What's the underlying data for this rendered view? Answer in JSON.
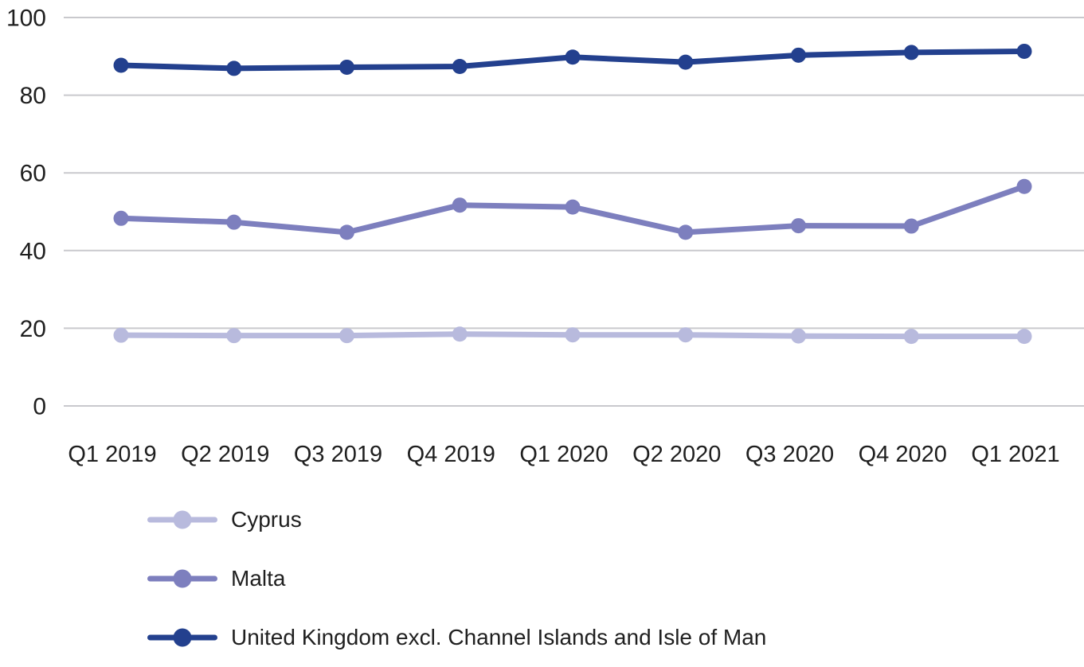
{
  "chart_data": {
    "type": "line",
    "title": "",
    "xlabel": "",
    "ylabel": "",
    "x": [
      "Q1 2019",
      "Q2 2019",
      "Q3 2019",
      "Q4 2019",
      "Q1 2020",
      "Q2 2020",
      "Q3 2020",
      "Q4 2020",
      "Q1 2021"
    ],
    "series": [
      {
        "name": "Cyprus",
        "color": "#b8badd",
        "values": [
          18.2,
          18.1,
          18.1,
          18.5,
          18.3,
          18.3,
          18.0,
          17.9,
          17.9
        ]
      },
      {
        "name": "Malta",
        "color": "#7d7fbe",
        "values": [
          48.3,
          47.3,
          44.7,
          51.7,
          51.2,
          44.7,
          46.4,
          46.3,
          56.5
        ]
      },
      {
        "name": "United Kingdom excl. Channel Islands and Isle of Man",
        "color": "#23408e",
        "values": [
          87.7,
          86.9,
          87.2,
          87.4,
          89.8,
          88.5,
          90.3,
          91.0,
          91.3
        ]
      }
    ],
    "ylim": [
      0,
      100
    ],
    "yticks": [
      0,
      20,
      40,
      60,
      80,
      100
    ],
    "grid": true,
    "gridline_color": "#c9c9cd",
    "text_color": "#1f1f1f",
    "legend_position": "bottom-left",
    "marker_style": "circle"
  }
}
